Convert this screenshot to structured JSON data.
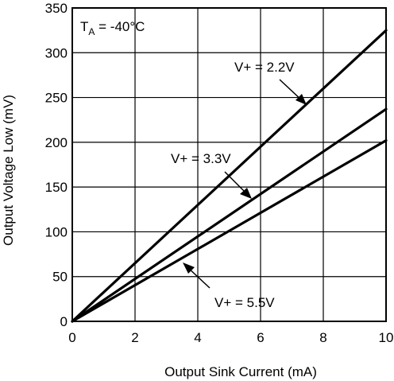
{
  "chart_data": {
    "type": "line",
    "xlabel": "Output Sink Current (mA)",
    "ylabel": "Output Voltage Low (mV)",
    "xlim": [
      0,
      10
    ],
    "ylim": [
      0,
      350
    ],
    "xticks": [
      0,
      2,
      4,
      6,
      8,
      10
    ],
    "yticks": [
      0,
      50,
      100,
      150,
      200,
      250,
      300,
      350
    ],
    "grid": true,
    "condition": {
      "main": "T",
      "sub": "A",
      "rest": " = -40°C"
    },
    "series": [
      {
        "name": "V+ = 2.2V",
        "x": [
          0,
          10
        ],
        "y": [
          0,
          325
        ]
      },
      {
        "name": "V+ = 3.3V",
        "x": [
          0,
          10
        ],
        "y": [
          0,
          237
        ]
      },
      {
        "name": "V+ = 5.5V",
        "x": [
          0,
          10
        ],
        "y": [
          0,
          202
        ]
      }
    ]
  }
}
